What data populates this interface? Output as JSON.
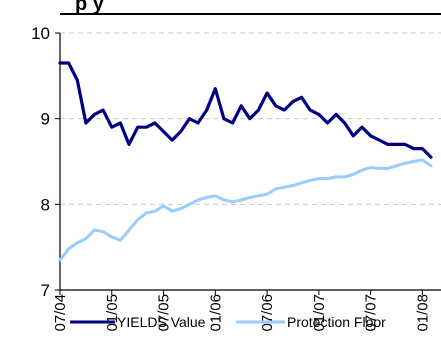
{
  "chart_data": {
    "type": "line",
    "title": "",
    "title_fragment": "p y",
    "xlabel": "",
    "ylabel": "",
    "ylim": [
      7,
      10
    ],
    "y_ticks": [
      7,
      8,
      9,
      10
    ],
    "grid": true,
    "legend_position": "bottom",
    "x_tick_labels": [
      "07/04",
      "01/05",
      "07/05",
      "01/06",
      "07/06",
      "01/07",
      "07/07",
      "01/08"
    ],
    "x_months": [
      "2004-07",
      "2004-08",
      "2004-09",
      "2004-10",
      "2004-11",
      "2004-12",
      "2005-01",
      "2005-02",
      "2005-03",
      "2005-04",
      "2005-05",
      "2005-06",
      "2005-07",
      "2005-08",
      "2005-09",
      "2005-10",
      "2005-11",
      "2005-12",
      "2006-01",
      "2006-02",
      "2006-03",
      "2006-04",
      "2006-05",
      "2006-06",
      "2006-07",
      "2006-08",
      "2006-09",
      "2006-10",
      "2006-11",
      "2006-12",
      "2007-01",
      "2007-02",
      "2007-03",
      "2007-04",
      "2007-05",
      "2007-06",
      "2007-07",
      "2007-08",
      "2007-09",
      "2007-10",
      "2007-11",
      "2007-12",
      "2008-01",
      "2008-02"
    ],
    "series": [
      {
        "name": "YIELDS Value",
        "color": "#000080",
        "values": [
          9.65,
          9.65,
          9.45,
          8.95,
          9.05,
          9.1,
          8.9,
          8.95,
          8.7,
          8.9,
          8.9,
          8.95,
          8.85,
          8.75,
          8.85,
          9.0,
          8.95,
          9.1,
          9.35,
          9.0,
          8.95,
          9.15,
          9.0,
          9.1,
          9.3,
          9.15,
          9.1,
          9.2,
          9.25,
          9.1,
          9.05,
          8.95,
          9.05,
          8.95,
          8.8,
          8.9,
          8.8,
          8.75,
          8.7,
          8.7,
          8.7,
          8.65,
          8.65,
          8.55
        ]
      },
      {
        "name": "Protection Floor",
        "color": "#99ccff",
        "values": [
          7.35,
          7.48,
          7.55,
          7.6,
          7.7,
          7.68,
          7.62,
          7.58,
          7.7,
          7.82,
          7.9,
          7.92,
          7.98,
          7.92,
          7.95,
          8.0,
          8.05,
          8.08,
          8.1,
          8.05,
          8.03,
          8.05,
          8.08,
          8.1,
          8.12,
          8.18,
          8.2,
          8.22,
          8.25,
          8.28,
          8.3,
          8.3,
          8.32,
          8.32,
          8.35,
          8.4,
          8.43,
          8.42,
          8.42,
          8.45,
          8.48,
          8.5,
          8.52,
          8.45
        ]
      }
    ]
  }
}
